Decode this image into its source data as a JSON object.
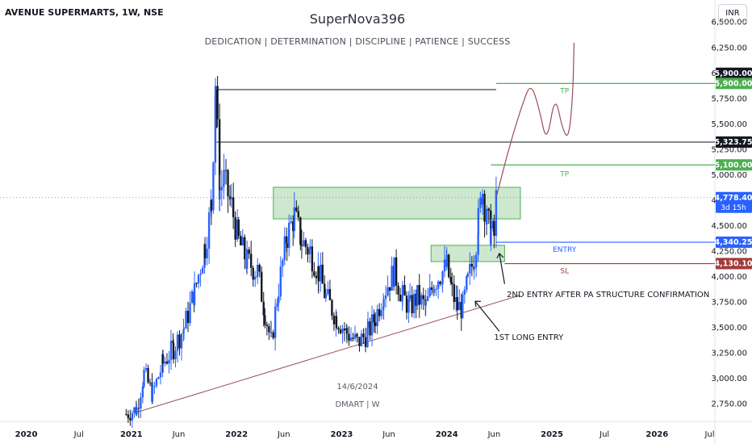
{
  "header": {
    "ticker": "AVENUE SUPERMARTS, 1W, NSE",
    "author": "SuperNova396",
    "tagline": "DEDICATION | DETERMINATION | DISCIPLINE | PATIENCE | SUCCESS",
    "currency": "INR"
  },
  "watermark": {
    "date": "14/6/2024",
    "symbol": "DMART | W"
  },
  "colors": {
    "up": "#2962ff",
    "down": "#131722",
    "tp": "#4caf50",
    "sl": "#a33a3a",
    "entry": "#2962ff",
    "trend": "#9c4a5e",
    "zone": "#a5d6a7"
  },
  "chart_data": {
    "type": "candlestick",
    "title": "AVENUE SUPERMARTS, 1W, NSE",
    "y_axis": {
      "ticks": [
        "2,750.00",
        "3,000.00",
        "3,250.00",
        "3,500.00",
        "3,750.00",
        "4,000.00",
        "4,250.00",
        "4,500.00",
        "4,750.00",
        "5,000.00",
        "5,250.00",
        "5,500.00",
        "5,750.00",
        "6,000.00",
        "6,250.00",
        "6,500.00"
      ],
      "tick_values": [
        2750,
        3000,
        3250,
        3500,
        3750,
        4000,
        4250,
        4500,
        4750,
        5000,
        5250,
        5500,
        5750,
        6000,
        6250,
        6500
      ],
      "range": [
        2580,
        6720
      ]
    },
    "x_axis": {
      "ticks": [
        "2020",
        "Jul",
        "2021",
        "Jun",
        "2022",
        "Jun",
        "2023",
        "Jun",
        "2024",
        "Jun",
        "2025",
        "Jul",
        "2026",
        "Jul"
      ],
      "tick_values": [
        2020.0,
        2020.5,
        2021.0,
        2021.45,
        2022.0,
        2022.45,
        2023.0,
        2023.45,
        2024.0,
        2024.45,
        2025.0,
        2025.5,
        2026.0,
        2026.5
      ],
      "range": [
        2019.75,
        2026.55
      ]
    },
    "price_path": [
      [
        2020.95,
        2650
      ],
      [
        2021.05,
        2700
      ],
      [
        2021.12,
        3050
      ],
      [
        2021.2,
        2850
      ],
      [
        2021.3,
        3150
      ],
      [
        2021.4,
        3300
      ],
      [
        2021.5,
        3500
      ],
      [
        2021.6,
        3850
      ],
      [
        2021.7,
        4300
      ],
      [
        2021.76,
        4700
      ],
      [
        2021.8,
        5900
      ],
      [
        2021.84,
        4850
      ],
      [
        2021.88,
        4950
      ],
      [
        2021.95,
        4700
      ],
      [
        2022.02,
        4350
      ],
      [
        2022.1,
        4150
      ],
      [
        2022.2,
        4050
      ],
      [
        2022.27,
        3650
      ],
      [
        2022.33,
        3350
      ],
      [
        2022.4,
        3900
      ],
      [
        2022.48,
        4400
      ],
      [
        2022.55,
        4600
      ],
      [
        2022.62,
        4350
      ],
      [
        2022.7,
        4250
      ],
      [
        2022.78,
        4050
      ],
      [
        2022.85,
        3800
      ],
      [
        2022.95,
        3600
      ],
      [
        2023.05,
        3450
      ],
      [
        2023.15,
        3350
      ],
      [
        2023.25,
        3450
      ],
      [
        2023.32,
        3600
      ],
      [
        2023.4,
        3850
      ],
      [
        2023.5,
        4050
      ],
      [
        2023.58,
        3800
      ],
      [
        2023.65,
        3700
      ],
      [
        2023.72,
        3800
      ],
      [
        2023.8,
        3700
      ],
      [
        2023.88,
        3950
      ],
      [
        2023.96,
        4050
      ],
      [
        2024.0,
        4100
      ],
      [
        2024.05,
        3850
      ],
      [
        2024.1,
        3700
      ],
      [
        2024.15,
        3700
      ],
      [
        2024.2,
        3950
      ],
      [
        2024.26,
        4200
      ],
      [
        2024.3,
        4550
      ],
      [
        2024.34,
        4850
      ],
      [
        2024.38,
        4550
      ],
      [
        2024.42,
        4450
      ],
      [
        2024.45,
        4400
      ],
      [
        2024.47,
        4778.4
      ]
    ],
    "last_price": "4,778.40",
    "countdown": "3d 15h",
    "levels": [
      {
        "name": "TP",
        "value": 5900,
        "label": "5,900.00",
        "color": "#4caf50"
      },
      {
        "name": "TP",
        "value": 5100,
        "label": "5,100.00",
        "color": "#4caf50"
      },
      {
        "name": "ENTRY",
        "value": 4340.25,
        "label": "4,340.25",
        "color": "#2962ff"
      },
      {
        "name": "SL",
        "value": 4130.1,
        "label": "4,130.10",
        "color": "#a33a3a"
      }
    ],
    "black_levels": [
      {
        "value": 5900,
        "label": "5,900.00"
      },
      {
        "value": 5323.75,
        "label": "5,323.75"
      }
    ],
    "zones": [
      {
        "x0": 2022.35,
        "x1": 2024.7,
        "y0": 4570,
        "y1": 4880
      },
      {
        "x0": 2023.85,
        "x1": 2024.55,
        "y0": 4150,
        "y1": 4310
      }
    ],
    "trendline": {
      "x0": 2021.05,
      "x1": 2024.7,
      "y0": 2670,
      "y1": 3820
    },
    "projection": [
      [
        2024.47,
        4780
      ],
      [
        2024.6,
        5300
      ],
      [
        2024.72,
        5700
      ],
      [
        2024.8,
        5910
      ],
      [
        2024.88,
        5650
      ],
      [
        2024.95,
        5300
      ],
      [
        2025.03,
        5800
      ],
      [
        2025.1,
        5450
      ],
      [
        2025.16,
        5350
      ],
      [
        2025.2,
        5800
      ],
      [
        2025.21,
        6300
      ]
    ],
    "annotations": [
      {
        "text": "2ND ENTRY AFTER PA STRUCTURE CONFIRMATION"
      },
      {
        "text": "1ST LONG ENTRY"
      }
    ]
  }
}
